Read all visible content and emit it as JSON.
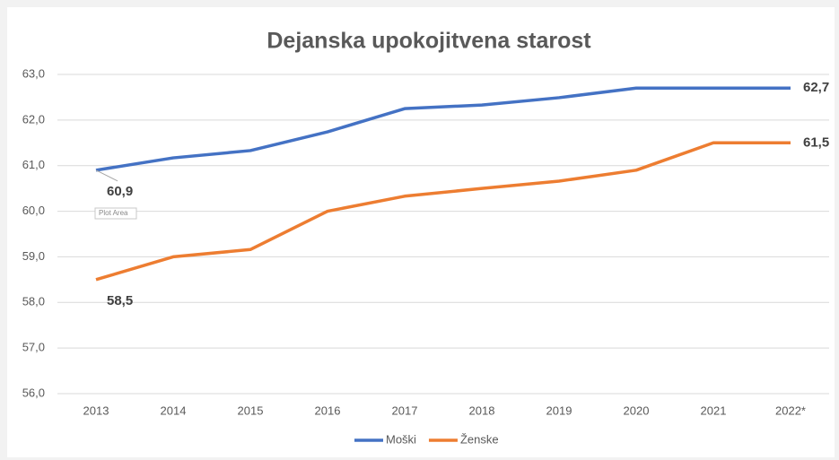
{
  "chart_data": {
    "type": "line",
    "title": "Dejanska upokojitvena starost",
    "categories": [
      "2013",
      "2014",
      "2015",
      "2016",
      "2017",
      "2018",
      "2019",
      "2020",
      "2021",
      "2022*"
    ],
    "series": [
      {
        "name": "Moški",
        "color": "#4472c4",
        "values": [
          60.9,
          61.17,
          61.33,
          61.74,
          62.25,
          62.33,
          62.49,
          62.7,
          62.7,
          62.7
        ],
        "value_labels": [
          "60,9",
          null,
          null,
          null,
          null,
          null,
          null,
          null,
          null,
          "62,7"
        ]
      },
      {
        "name": "Ženske",
        "color": "#ed7d31",
        "values": [
          58.5,
          59.0,
          59.16,
          60.0,
          60.33,
          60.5,
          60.66,
          60.9,
          61.5,
          61.5
        ],
        "value_labels": [
          "58,5",
          null,
          null,
          null,
          null,
          null,
          null,
          null,
          null,
          "61,5"
        ]
      }
    ],
    "ylim": [
      56,
      63
    ],
    "yticks": [
      {
        "value": 56,
        "label": "56,0"
      },
      {
        "value": 57,
        "label": "57,0"
      },
      {
        "value": 58,
        "label": "58,0"
      },
      {
        "value": 59,
        "label": "59,0"
      },
      {
        "value": 60,
        "label": "60,0"
      },
      {
        "value": 61,
        "label": "61,0"
      },
      {
        "value": 62,
        "label": "62,0"
      },
      {
        "value": 63,
        "label": "63,0"
      }
    ],
    "grid": true,
    "legend": "bottom",
    "tooltip": "Plot Area"
  }
}
